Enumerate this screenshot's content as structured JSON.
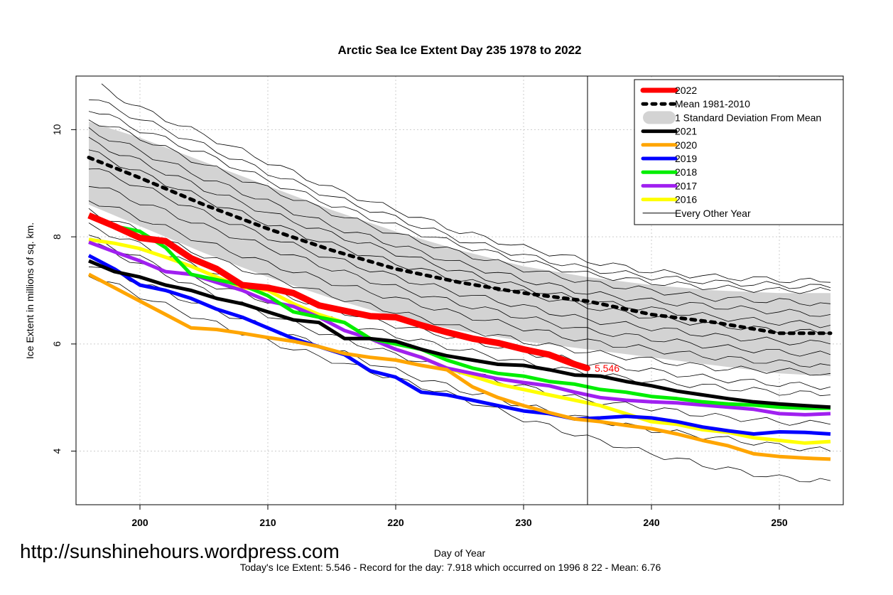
{
  "chart_data": {
    "type": "line",
    "title": "Arctic Sea Ice Extent Day 235 1978 to 2022",
    "xlabel": "Day of Year",
    "ylabel": "Ice Extent in millions of sq. km.",
    "xlim": [
      195,
      255
    ],
    "ylim": [
      3.0,
      11.0
    ],
    "x_ticks": [
      200,
      210,
      220,
      230,
      240,
      250
    ],
    "y_ticks": [
      4,
      6,
      8,
      10
    ],
    "grid": true,
    "legend_position": "top-right",
    "marker_day": 235,
    "current_value_label": "5.546",
    "watermark": "http://sunshinehours.wordpress.com",
    "footer": "Today's Ice Extent: 5.546  - Record for the day: 7.918 which occurred on 1996 8 22  - Mean: 6.76",
    "legend": [
      {
        "label": "2022",
        "color": "#ff0000",
        "style": "thick"
      },
      {
        "label": "Mean 1981-2010",
        "color": "#000000",
        "style": "dotted"
      },
      {
        "label": "1 Standard Deviation From Mean",
        "color": "#d3d3d3",
        "style": "band"
      },
      {
        "label": "2021",
        "color": "#000000",
        "style": "thick"
      },
      {
        "label": "2020",
        "color": "#ffa500",
        "style": "thick"
      },
      {
        "label": "2019",
        "color": "#0000ff",
        "style": "thick"
      },
      {
        "label": "2018",
        "color": "#00ee00",
        "style": "thick"
      },
      {
        "label": "2017",
        "color": "#a020f0",
        "style": "thick"
      },
      {
        "label": "2016",
        "color": "#ffff00",
        "style": "thick"
      },
      {
        "label": "Every Other Year",
        "color": "#000000",
        "style": "thin"
      }
    ],
    "std_band": {
      "x": [
        196,
        200,
        205,
        210,
        215,
        220,
        225,
        230,
        235,
        240,
        245,
        250,
        254
      ],
      "upper": [
        10.15,
        9.85,
        9.4,
        8.95,
        8.5,
        8.1,
        7.75,
        7.45,
        7.25,
        7.1,
        7.0,
        6.95,
        6.95
      ],
      "lower": [
        8.6,
        8.2,
        7.7,
        7.25,
        6.85,
        6.5,
        6.25,
        6.05,
        5.9,
        5.75,
        5.6,
        5.45,
        5.4
      ]
    },
    "series": [
      {
        "name": "Mean 1981-2010",
        "color": "#000000",
        "style": "dotted",
        "x": [
          196,
          200,
          205,
          210,
          215,
          220,
          225,
          230,
          235,
          240,
          245,
          250,
          254
        ],
        "values": [
          9.48,
          9.1,
          8.6,
          8.15,
          7.75,
          7.4,
          7.15,
          6.95,
          6.8,
          6.55,
          6.4,
          6.2,
          6.2
        ]
      },
      {
        "name": "2016",
        "color": "#ffff00",
        "style": "thick",
        "x": [
          196,
          198,
          200,
          202,
          204,
          206,
          208,
          210,
          212,
          214,
          216,
          218,
          220,
          222,
          224,
          226,
          228,
          230,
          232,
          234,
          236,
          238,
          240,
          242,
          244,
          246,
          248,
          250,
          252,
          254
        ],
        "values": [
          7.95,
          7.88,
          7.78,
          7.62,
          7.45,
          7.25,
          7.05,
          7.0,
          6.75,
          6.55,
          6.4,
          6.1,
          5.9,
          5.75,
          5.55,
          5.4,
          5.25,
          5.15,
          5.05,
          4.95,
          4.85,
          4.7,
          4.55,
          4.5,
          4.4,
          4.35,
          4.25,
          4.2,
          4.15,
          4.18
        ]
      },
      {
        "name": "2017",
        "color": "#a020f0",
        "style": "thick",
        "x": [
          196,
          198,
          200,
          202,
          204,
          206,
          208,
          210,
          212,
          214,
          216,
          218,
          220,
          222,
          224,
          226,
          228,
          230,
          232,
          234,
          236,
          238,
          240,
          242,
          244,
          246,
          248,
          250,
          252,
          254
        ],
        "values": [
          7.9,
          7.72,
          7.55,
          7.35,
          7.3,
          7.15,
          7.0,
          6.8,
          6.7,
          6.5,
          6.25,
          6.1,
          5.9,
          5.75,
          5.55,
          5.45,
          5.35,
          5.28,
          5.22,
          5.1,
          5.0,
          4.95,
          4.92,
          4.9,
          4.86,
          4.82,
          4.78,
          4.7,
          4.68,
          4.7
        ]
      },
      {
        "name": "2018",
        "color": "#00ee00",
        "style": "thick",
        "x": [
          196,
          198,
          200,
          202,
          204,
          206,
          208,
          210,
          212,
          214,
          216,
          218,
          220,
          222,
          224,
          226,
          228,
          230,
          232,
          234,
          236,
          238,
          240,
          242,
          244,
          246,
          248,
          250,
          252,
          254
        ],
        "values": [
          8.4,
          8.2,
          8.1,
          7.8,
          7.3,
          7.2,
          7.1,
          6.9,
          6.6,
          6.5,
          6.4,
          6.1,
          6.0,
          5.9,
          5.7,
          5.55,
          5.45,
          5.4,
          5.3,
          5.25,
          5.15,
          5.1,
          5.02,
          4.98,
          4.92,
          4.88,
          4.86,
          4.82,
          4.8,
          4.8
        ]
      },
      {
        "name": "2019",
        "color": "#0000ff",
        "style": "thick",
        "x": [
          196,
          198,
          200,
          202,
          204,
          206,
          208,
          210,
          212,
          214,
          216,
          218,
          220,
          222,
          224,
          226,
          228,
          230,
          232,
          234,
          236,
          238,
          240,
          242,
          244,
          246,
          248,
          250,
          252,
          254
        ],
        "values": [
          7.65,
          7.4,
          7.1,
          7.0,
          6.85,
          6.65,
          6.5,
          6.3,
          6.1,
          5.95,
          5.8,
          5.5,
          5.38,
          5.1,
          5.05,
          4.95,
          4.85,
          4.75,
          4.7,
          4.6,
          4.62,
          4.65,
          4.62,
          4.55,
          4.45,
          4.38,
          4.32,
          4.36,
          4.35,
          4.32
        ]
      },
      {
        "name": "2020",
        "color": "#ffa500",
        "style": "thick",
        "x": [
          196,
          198,
          200,
          202,
          204,
          206,
          208,
          210,
          212,
          214,
          216,
          218,
          220,
          222,
          224,
          226,
          228,
          230,
          232,
          234,
          236,
          238,
          240,
          242,
          244,
          246,
          248,
          250,
          252,
          254
        ],
        "values": [
          7.3,
          7.05,
          6.8,
          6.55,
          6.3,
          6.27,
          6.2,
          6.12,
          6.05,
          5.95,
          5.82,
          5.75,
          5.7,
          5.6,
          5.52,
          5.2,
          5.0,
          4.85,
          4.72,
          4.6,
          4.55,
          4.48,
          4.42,
          4.32,
          4.2,
          4.1,
          3.95,
          3.9,
          3.87,
          3.85
        ]
      },
      {
        "name": "2021",
        "color": "#000000",
        "style": "thick",
        "x": [
          196,
          198,
          200,
          202,
          204,
          206,
          208,
          210,
          212,
          214,
          216,
          218,
          220,
          222,
          224,
          226,
          228,
          230,
          232,
          234,
          236,
          238,
          240,
          242,
          244,
          246,
          248,
          250,
          252,
          254
        ],
        "values": [
          7.55,
          7.35,
          7.25,
          7.1,
          7.0,
          6.85,
          6.75,
          6.6,
          6.45,
          6.4,
          6.1,
          6.1,
          6.05,
          5.9,
          5.78,
          5.7,
          5.62,
          5.6,
          5.52,
          5.42,
          5.4,
          5.3,
          5.22,
          5.12,
          5.05,
          4.98,
          4.92,
          4.88,
          4.85,
          4.82
        ]
      },
      {
        "name": "2022",
        "color": "#ff0000",
        "style": "thick",
        "x": [
          196,
          198,
          200,
          202,
          204,
          206,
          208,
          210,
          212,
          214,
          216,
          218,
          220,
          222,
          224,
          226,
          228,
          230,
          232,
          234,
          235
        ],
        "values": [
          8.4,
          8.2,
          7.98,
          7.92,
          7.6,
          7.4,
          7.1,
          7.05,
          6.95,
          6.72,
          6.62,
          6.52,
          6.5,
          6.35,
          6.22,
          6.1,
          6.02,
          5.9,
          5.8,
          5.62,
          5.546
        ]
      }
    ],
    "thin_series": [
      {
        "x": [
          197,
          200,
          205,
          210,
          215,
          220,
          225,
          230,
          235,
          240,
          245,
          250,
          254
        ],
        "values": [
          10.8,
          10.4,
          9.9,
          9.4,
          8.9,
          8.5,
          8.1,
          7.8,
          7.55,
          7.35,
          7.25,
          7.2,
          7.15
        ]
      },
      {
        "x": [
          196,
          200,
          205,
          210,
          215,
          220,
          225,
          230,
          235,
          240,
          245,
          250,
          254
        ],
        "values": [
          10.6,
          10.2,
          9.7,
          9.2,
          8.75,
          8.35,
          7.95,
          7.65,
          7.4,
          7.25,
          7.15,
          7.1,
          7.05
        ]
      },
      {
        "x": [
          196,
          200,
          205,
          210,
          215,
          220,
          225,
          230,
          235,
          240,
          245,
          250,
          254
        ],
        "values": [
          10.4,
          10.0,
          9.55,
          9.05,
          8.6,
          8.2,
          7.85,
          7.55,
          7.3,
          7.15,
          7.05,
          7.0,
          7.0
        ]
      },
      {
        "x": [
          196,
          200,
          205,
          210,
          215,
          220,
          225,
          230,
          235,
          240,
          245,
          250,
          254
        ],
        "values": [
          10.2,
          9.85,
          9.35,
          8.9,
          8.45,
          8.05,
          7.7,
          7.4,
          7.15,
          7.0,
          6.85,
          6.8,
          6.75
        ]
      },
      {
        "x": [
          196,
          200,
          205,
          210,
          215,
          220,
          225,
          230,
          235,
          240,
          245,
          250,
          254
        ],
        "values": [
          10.0,
          9.6,
          9.1,
          8.65,
          8.2,
          7.85,
          7.5,
          7.2,
          6.95,
          6.8,
          6.7,
          6.6,
          6.55
        ]
      },
      {
        "x": [
          196,
          200,
          205,
          210,
          215,
          220,
          225,
          230,
          235,
          240,
          245,
          250,
          254
        ],
        "values": [
          9.8,
          9.4,
          8.9,
          8.45,
          8.05,
          7.7,
          7.35,
          7.05,
          6.8,
          6.65,
          6.5,
          6.4,
          6.35
        ]
      },
      {
        "x": [
          196,
          200,
          205,
          210,
          215,
          220,
          225,
          230,
          235,
          240,
          245,
          250,
          254
        ],
        "values": [
          9.6,
          9.2,
          8.7,
          8.25,
          7.85,
          7.5,
          7.2,
          6.95,
          6.7,
          6.5,
          6.35,
          6.25,
          6.2
        ]
      },
      {
        "x": [
          196,
          200,
          205,
          210,
          215,
          220,
          225,
          230,
          235,
          240,
          245,
          250,
          254
        ],
        "values": [
          9.3,
          8.95,
          8.45,
          8.0,
          7.6,
          7.25,
          6.95,
          6.7,
          6.45,
          6.3,
          6.15,
          6.05,
          6.0
        ]
      },
      {
        "x": [
          196,
          200,
          205,
          210,
          215,
          220,
          225,
          230,
          235,
          240,
          245,
          250,
          254
        ],
        "values": [
          9.0,
          8.65,
          8.2,
          7.8,
          7.4,
          7.05,
          6.75,
          6.5,
          6.25,
          6.1,
          5.95,
          5.85,
          5.8
        ]
      },
      {
        "x": [
          196,
          200,
          205,
          210,
          215,
          220,
          225,
          230,
          235,
          240,
          245,
          250,
          254
        ],
        "values": [
          8.7,
          8.35,
          7.9,
          7.5,
          7.15,
          6.85,
          6.55,
          6.3,
          6.05,
          5.9,
          5.75,
          5.65,
          5.6
        ]
      },
      {
        "x": [
          196,
          200,
          205,
          210,
          215,
          220,
          225,
          230,
          235,
          240,
          245,
          250,
          254
        ],
        "values": [
          8.5,
          8.1,
          7.65,
          7.25,
          6.9,
          6.6,
          6.3,
          6.05,
          5.85,
          5.7,
          5.55,
          5.5,
          5.45
        ]
      },
      {
        "x": [
          196,
          200,
          205,
          210,
          215,
          220,
          225,
          230,
          235,
          240,
          245,
          250,
          254
        ],
        "values": [
          8.2,
          7.85,
          7.4,
          7.0,
          6.65,
          6.35,
          6.1,
          5.85,
          5.65,
          5.5,
          5.35,
          5.25,
          5.2
        ]
      },
      {
        "x": [
          196,
          200,
          205,
          210,
          215,
          220,
          225,
          230,
          235,
          240,
          245,
          250,
          254
        ],
        "values": [
          8.0,
          7.6,
          7.15,
          6.8,
          6.45,
          6.15,
          5.9,
          5.65,
          5.45,
          5.3,
          5.2,
          5.1,
          5.05
        ]
      },
      {
        "x": [
          196,
          200,
          205,
          210,
          215,
          220,
          225,
          230,
          235,
          240,
          245,
          250,
          254
        ],
        "values": [
          7.9,
          7.5,
          7.0,
          6.55,
          6.15,
          5.8,
          5.5,
          5.2,
          4.95,
          4.8,
          4.65,
          4.55,
          4.5
        ]
      },
      {
        "x": [
          196,
          200,
          205,
          210,
          215,
          220,
          225,
          230,
          235,
          240,
          245,
          250,
          254
        ],
        "values": [
          7.5,
          7.15,
          6.7,
          6.3,
          5.9,
          5.5,
          5.15,
          4.85,
          4.6,
          4.4,
          4.25,
          4.1,
          4.0
        ]
      },
      {
        "x": [
          196,
          200,
          205,
          210,
          215,
          220,
          225,
          230,
          235,
          240,
          245,
          250,
          254
        ],
        "values": [
          7.3,
          6.9,
          6.45,
          6.05,
          5.7,
          5.35,
          5.0,
          4.6,
          4.25,
          3.95,
          3.7,
          3.5,
          3.45
        ]
      }
    ]
  }
}
